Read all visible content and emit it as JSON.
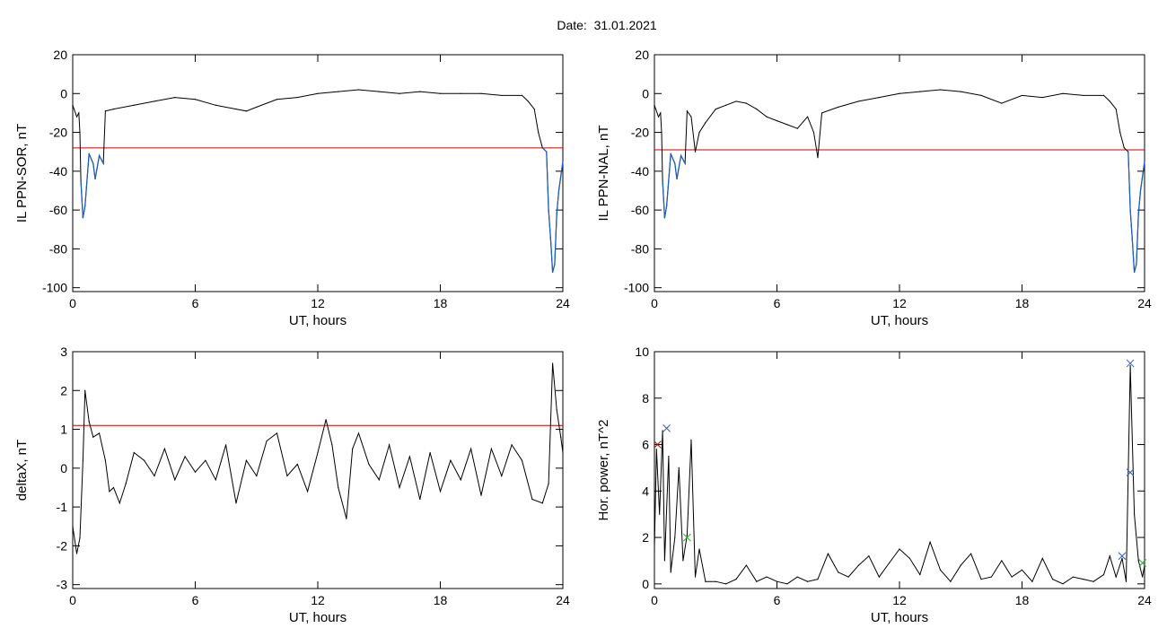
{
  "figure": {
    "title": "Date:  31.01.2021",
    "colors": {
      "background": "#ffffff",
      "axis": "#000000",
      "main_line": "#000000",
      "threshold_line": "#cc0000",
      "highlight_line": "#1f5fbf",
      "marker_red": "#cc0000",
      "marker_blue": "#2f5fbf",
      "marker_green": "#22aa22"
    }
  },
  "chart_data": [
    {
      "type": "line",
      "xlabel": "UT, hours",
      "ylabel": "IL PPN-SOR, nT",
      "xlim": [
        0,
        24
      ],
      "ylim": [
        -102,
        20
      ],
      "xticks": [
        0,
        6,
        12,
        18,
        24
      ],
      "yticks": [
        20,
        0,
        -20,
        -40,
        -60,
        -80,
        -100
      ],
      "threshold": -28,
      "series": [
        {
          "x": [
            0,
            0.2,
            0.3,
            0.35,
            0.4,
            0.5,
            0.6,
            0.8,
            1.0,
            1.1,
            1.3,
            1.5,
            1.6,
            2,
            3,
            4,
            5,
            6,
            7,
            8,
            8.5,
            9,
            10,
            11,
            12,
            13,
            14,
            15,
            16,
            17,
            18,
            19,
            20,
            21,
            22,
            22.3,
            22.6,
            22.8,
            23,
            23.2,
            23.3,
            23.4,
            23.5,
            23.6,
            23.7,
            23.8,
            24
          ],
          "y": [
            -6,
            -12,
            -10,
            -20,
            -45,
            -64,
            -58,
            -31,
            -36,
            -44,
            -32,
            -36,
            -9,
            -8,
            -6,
            -4,
            -2,
            -3,
            -6,
            -8,
            -9,
            -7,
            -3,
            -2,
            0,
            1,
            2,
            1,
            0,
            1,
            0,
            0,
            0,
            -1,
            -1,
            -4,
            -8,
            -20,
            -28,
            -30,
            -60,
            -75,
            -92,
            -88,
            -62,
            -50,
            -35
          ]
        }
      ],
      "highlight_threshold_below": -28
    },
    {
      "type": "line",
      "xlabel": "UT, hours",
      "ylabel": "IL PPN-NAL, nT",
      "xlim": [
        0,
        24
      ],
      "ylim": [
        -102,
        20
      ],
      "xticks": [
        0,
        6,
        12,
        18,
        24
      ],
      "yticks": [
        20,
        0,
        -20,
        -40,
        -60,
        -80,
        -100
      ],
      "threshold": -29,
      "series": [
        {
          "x": [
            0,
            0.2,
            0.3,
            0.35,
            0.4,
            0.5,
            0.6,
            0.8,
            1.0,
            1.1,
            1.3,
            1.5,
            1.6,
            1.8,
            2.0,
            2.2,
            2.5,
            3,
            3.5,
            4,
            4.5,
            5,
            5.5,
            6,
            6.5,
            7,
            7.5,
            7.8,
            8,
            8.2,
            9,
            10,
            11,
            12,
            13,
            14,
            15,
            16,
            17,
            18,
            19,
            20,
            21,
            22,
            22.3,
            22.6,
            22.8,
            23,
            23.2,
            23.3,
            23.4,
            23.5,
            23.6,
            23.7,
            23.8,
            24
          ],
          "y": [
            -6,
            -12,
            -10,
            -20,
            -45,
            -64,
            -58,
            -31,
            -36,
            -44,
            -32,
            -36,
            -9,
            -12,
            -30,
            -20,
            -15,
            -8,
            -6,
            -4,
            -5,
            -8,
            -12,
            -14,
            -16,
            -18,
            -12,
            -20,
            -33,
            -10,
            -7,
            -4,
            -2,
            0,
            1,
            2,
            1,
            -1,
            -5,
            -1,
            -2,
            0,
            -1,
            -1,
            -4,
            -8,
            -20,
            -28,
            -30,
            -60,
            -75,
            -92,
            -88,
            -62,
            -50,
            -35
          ]
        }
      ],
      "highlight_threshold_below": -29
    },
    {
      "type": "line",
      "xlabel": "UT, hours",
      "ylabel": "deltaX, nT",
      "xlim": [
        0,
        24
      ],
      "ylim": [
        -3.1,
        3
      ],
      "xticks": [
        0,
        6,
        12,
        18,
        24
      ],
      "yticks": [
        3,
        2,
        1,
        0,
        -1,
        -2,
        -3
      ],
      "threshold": 1.1,
      "series": [
        {
          "x": [
            0,
            0.2,
            0.35,
            0.5,
            0.6,
            0.8,
            1.0,
            1.3,
            1.6,
            1.8,
            2.0,
            2.3,
            2.6,
            3,
            3.5,
            4,
            4.5,
            5,
            5.5,
            6,
            6.5,
            7,
            7.5,
            8,
            8.5,
            9,
            9.5,
            10,
            10.5,
            11,
            11.5,
            12,
            12.4,
            12.7,
            13,
            13.4,
            13.7,
            14,
            14.5,
            15,
            15.5,
            16,
            16.5,
            17,
            17.5,
            18,
            18.5,
            19,
            19.5,
            20,
            20.5,
            21,
            21.5,
            22,
            22.5,
            23,
            23.3,
            23.5,
            23.7,
            23.9,
            24
          ],
          "y": [
            -1.5,
            -2.2,
            -1.8,
            0.2,
            2.0,
            1.2,
            0.8,
            0.9,
            0.2,
            -0.6,
            -0.5,
            -0.9,
            -0.4,
            0.4,
            0.2,
            -0.2,
            0.5,
            -0.3,
            0.3,
            -0.1,
            0.2,
            -0.3,
            0.6,
            -0.9,
            0.2,
            -0.2,
            0.7,
            0.9,
            -0.2,
            0.1,
            -0.6,
            0.4,
            1.25,
            0.6,
            -0.5,
            -1.3,
            0.5,
            0.9,
            0.1,
            -0.3,
            0.6,
            -0.5,
            0.3,
            -0.8,
            0.4,
            -0.6,
            0.2,
            -0.3,
            0.5,
            -0.7,
            0.5,
            -0.2,
            0.6,
            0.2,
            -0.8,
            -0.9,
            -0.4,
            2.7,
            1.5,
            0.8,
            0.4
          ]
        }
      ]
    },
    {
      "type": "line",
      "xlabel": "UT, hours",
      "ylabel": "Hor. power, nT^2",
      "xlim": [
        0,
        24
      ],
      "ylim": [
        -0.2,
        10
      ],
      "xticks": [
        0,
        6,
        12,
        18,
        24
      ],
      "yticks": [
        0,
        2,
        4,
        6,
        8,
        10
      ],
      "series": [
        {
          "x": [
            0,
            0.1,
            0.25,
            0.4,
            0.5,
            0.7,
            0.8,
            1.0,
            1.2,
            1.4,
            1.6,
            1.8,
            2.0,
            2.2,
            2.5,
            3,
            3.5,
            4,
            4.5,
            5,
            5.5,
            6,
            6.5,
            7,
            7.5,
            8,
            8.5,
            9,
            9.5,
            10,
            10.5,
            11,
            11.5,
            12,
            12.5,
            13,
            13.5,
            14,
            14.5,
            15,
            15.5,
            16,
            16.5,
            17,
            17.5,
            18,
            18.5,
            19,
            19.5,
            20,
            20.5,
            21,
            21.5,
            22,
            22.3,
            22.6,
            22.9,
            23.1,
            23.3,
            23.5,
            23.7,
            23.9,
            24
          ],
          "y": [
            1.5,
            5.8,
            3.0,
            6.6,
            1.0,
            5.5,
            0.5,
            2.0,
            5.0,
            1.0,
            2.1,
            6.2,
            0.3,
            1.5,
            0.1,
            0.1,
            0.0,
            0.2,
            0.8,
            0.1,
            0.3,
            0.1,
            0.0,
            0.3,
            0.1,
            0.2,
            1.3,
            0.5,
            0.3,
            0.8,
            1.2,
            0.3,
            0.9,
            1.5,
            1.1,
            0.4,
            1.8,
            0.6,
            0.1,
            0.8,
            1.3,
            0.2,
            0.3,
            1.0,
            0.3,
            0.6,
            0.1,
            1.1,
            0.2,
            0.0,
            0.3,
            0.2,
            0.1,
            0.4,
            1.2,
            0.3,
            1.1,
            0.1,
            9.4,
            3.0,
            1.0,
            0.3,
            0.8
          ]
        }
      ],
      "markers": [
        {
          "x": 0.15,
          "y": 6.0,
          "color": "red"
        },
        {
          "x": 0.6,
          "y": 6.7,
          "color": "blue"
        },
        {
          "x": 1.6,
          "y": 2.0,
          "color": "green"
        },
        {
          "x": 22.9,
          "y": 1.2,
          "color": "blue"
        },
        {
          "x": 23.3,
          "y": 9.5,
          "color": "blue"
        },
        {
          "x": 23.3,
          "y": 4.8,
          "color": "blue"
        },
        {
          "x": 23.9,
          "y": 0.9,
          "color": "green"
        }
      ]
    }
  ]
}
